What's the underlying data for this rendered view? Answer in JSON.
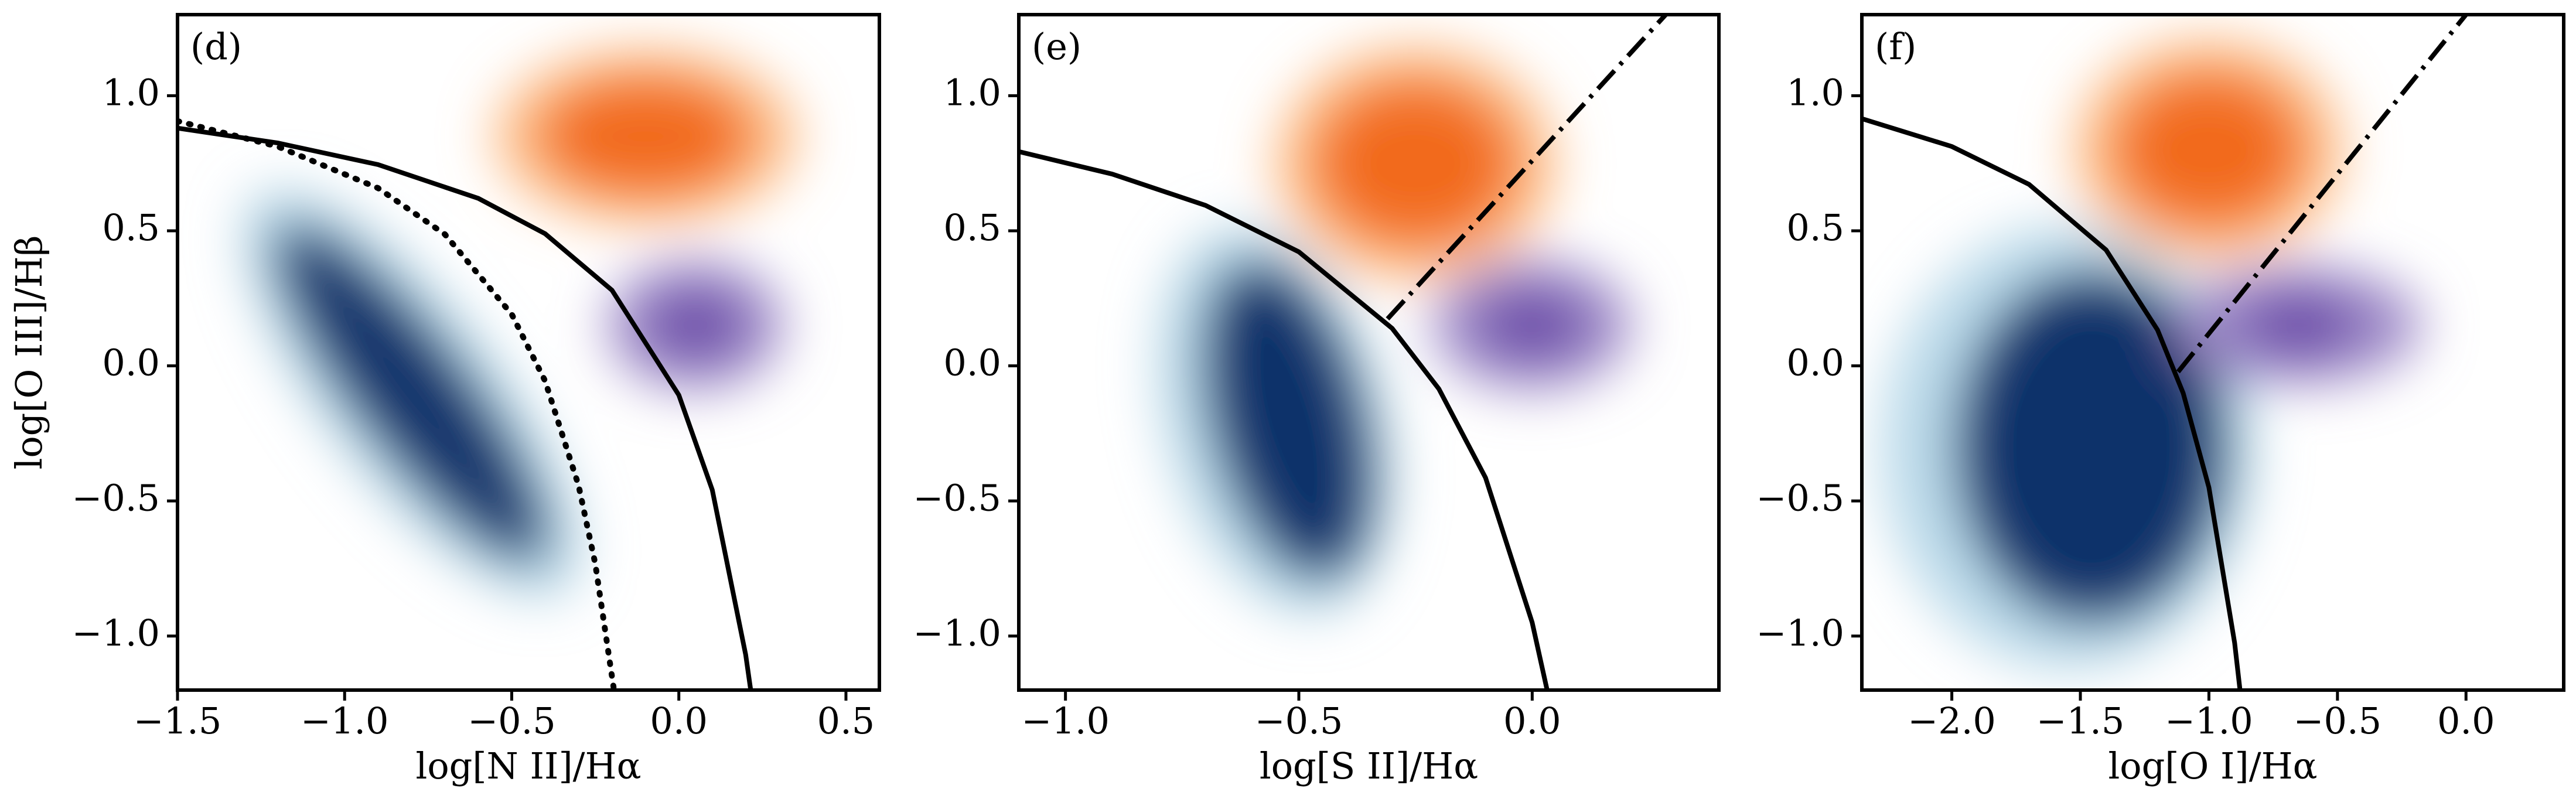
{
  "chart_data": [
    {
      "type": "line",
      "panel_label": "(d)",
      "xlabel": "log[N II]/Hα",
      "ylabel": "log[O III]/Hβ",
      "xlim": [
        -1.5,
        0.6
      ],
      "ylim": [
        -1.2,
        1.3
      ],
      "xticks": [
        {
          "value": -1.5,
          "label": "−1.5"
        },
        {
          "value": -1.0,
          "label": "−1.0"
        },
        {
          "value": -0.5,
          "label": "−0.5"
        },
        {
          "value": 0.0,
          "label": "0.0"
        },
        {
          "value": 0.5,
          "label": "0.5"
        }
      ],
      "yticks": [
        {
          "value": -1.0,
          "label": "−1.0"
        },
        {
          "value": -0.5,
          "label": "−0.5"
        },
        {
          "value": 0.0,
          "label": "0.0"
        },
        {
          "value": 0.5,
          "label": "0.5"
        },
        {
          "value": 1.0,
          "label": "1.0"
        }
      ],
      "lines": [
        {
          "style": "solid",
          "color": "#000000",
          "x": [
            -1.5,
            -1.2,
            -0.9,
            -0.6,
            -0.4,
            -0.2,
            0.0,
            0.1,
            0.2,
            0.215
          ],
          "y": [
            0.88,
            0.825,
            0.745,
            0.62,
            0.489,
            0.28,
            -0.108,
            -0.459,
            -1.069,
            -1.2
          ]
        },
        {
          "style": "dotted",
          "color": "#000000",
          "x": [
            -1.5,
            -1.2,
            -0.9,
            -0.7,
            -0.5,
            -0.4,
            -0.3,
            -0.25,
            -0.194
          ],
          "y": [
            0.906,
            0.812,
            0.658,
            0.487,
            0.191,
            -0.056,
            -0.443,
            -0.733,
            -1.2
          ]
        }
      ]
    },
    {
      "type": "line",
      "panel_label": "(e)",
      "xlabel": "log[S II]/Hα",
      "xlim": [
        -1.1,
        0.4
      ],
      "ylim": [
        -1.2,
        1.3
      ],
      "xticks": [
        {
          "value": -1.0,
          "label": "−1.0"
        },
        {
          "value": -0.5,
          "label": "−0.5"
        },
        {
          "value": 0.0,
          "label": "0.0"
        }
      ],
      "yticks": [
        {
          "value": -1.0,
          "label": "−1.0"
        },
        {
          "value": -0.5,
          "label": "−0.5"
        },
        {
          "value": 0.0,
          "label": "0.0"
        },
        {
          "value": 0.5,
          "label": "0.5"
        },
        {
          "value": 1.0,
          "label": "1.0"
        }
      ],
      "lines": [
        {
          "style": "solid",
          "color": "#000000",
          "x": [
            -1.1,
            -0.9,
            -0.7,
            -0.5,
            -0.3,
            -0.2,
            -0.1,
            0.0,
            0.032
          ],
          "y": [
            0.793,
            0.71,
            0.594,
            0.422,
            0.139,
            -0.085,
            -0.414,
            -0.95,
            -1.2
          ]
        },
        {
          "style": "dashdot",
          "color": "#000000",
          "x": [
            -0.31,
            0.286
          ],
          "y": [
            0.174,
            1.3
          ]
        }
      ]
    },
    {
      "type": "line",
      "panel_label": "(f)",
      "xlabel": "log[O I]/Hα",
      "xlim": [
        -2.35,
        0.38
      ],
      "ylim": [
        -1.2,
        1.3
      ],
      "xticks": [
        {
          "value": -2.0,
          "label": "−2.0"
        },
        {
          "value": -1.5,
          "label": "−1.5"
        },
        {
          "value": -1.0,
          "label": "−1.0"
        },
        {
          "value": -0.5,
          "label": "−0.5"
        },
        {
          "value": 0.0,
          "label": "0.0"
        }
      ],
      "yticks": [
        {
          "value": -1.0,
          "label": "−1.0"
        },
        {
          "value": -0.5,
          "label": "−0.5"
        },
        {
          "value": 0.0,
          "label": "0.0"
        },
        {
          "value": 0.5,
          "label": "0.5"
        },
        {
          "value": 1.0,
          "label": "1.0"
        }
      ],
      "lines": [
        {
          "style": "solid",
          "color": "#000000",
          "x": [
            -2.35,
            -2.0,
            -1.7,
            -1.4,
            -1.2,
            -1.1,
            -1.0,
            -0.9,
            -0.879
          ],
          "y": [
            0.915,
            0.812,
            0.672,
            0.429,
            0.133,
            -0.101,
            -0.45,
            -1.025,
            -1.2
          ]
        },
        {
          "style": "dashdot",
          "color": "#000000",
          "x": [
            -1.12,
            0.0
          ],
          "y": [
            -0.022,
            1.3
          ]
        }
      ]
    }
  ]
}
